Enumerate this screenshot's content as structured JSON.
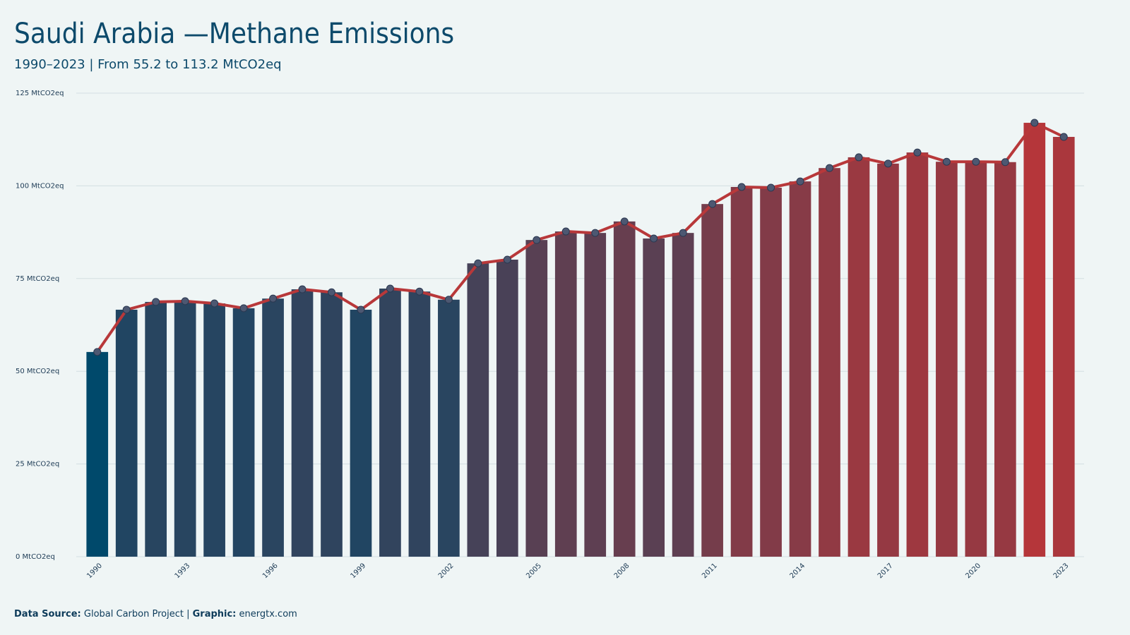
{
  "chart_data": {
    "type": "bar",
    "title": "Saudi Arabia —Methane Emissions",
    "subtitle": "1990–2023 | From 55.2 to 113.2 MtCO2eq",
    "source_label": "Data Source:",
    "source": "Global Carbon Project |",
    "graphic_label": "Graphic:",
    "graphic": "energtx.com",
    "categories": [
      "1990",
      null,
      null,
      "1993",
      null,
      null,
      "1996",
      null,
      null,
      "1999",
      null,
      null,
      "2002",
      null,
      null,
      "2005",
      null,
      null,
      "2008",
      null,
      null,
      "2011",
      null,
      null,
      "2014",
      null,
      null,
      "2017",
      null,
      null,
      "2020",
      null,
      null,
      "2023"
    ],
    "values": [
      55.2,
      66.6,
      68.7,
      68.9,
      68.3,
      67.0,
      69.6,
      72.1,
      71.3,
      66.6,
      72.3,
      71.5,
      69.3,
      79.1,
      80.1,
      85.4,
      87.7,
      87.3,
      90.4,
      85.8,
      87.3,
      95.1,
      99.7,
      99.5,
      101.2,
      104.8,
      107.7,
      106.0,
      109.0,
      106.5,
      106.5,
      106.4,
      117.0,
      113.2
    ],
    "color_scale": [
      "#00496b",
      "#b5363a"
    ],
    "line_color": "#b8383a",
    "marker_color": "#4d5872",
    "ylim": [
      0,
      125
    ],
    "yticks": [
      {
        "value": 0,
        "label": "0 MtCO2eq"
      },
      {
        "value": 25,
        "label": "25 MtCO2eq"
      },
      {
        "value": 50,
        "label": "50 MtCO2eq"
      },
      {
        "value": 75,
        "label": "75 MtCO2eq"
      },
      {
        "value": 100,
        "label": "100 MtCO2eq"
      },
      {
        "value": 125,
        "label": "125 MtCO2eq"
      }
    ],
    "grid": true
  }
}
